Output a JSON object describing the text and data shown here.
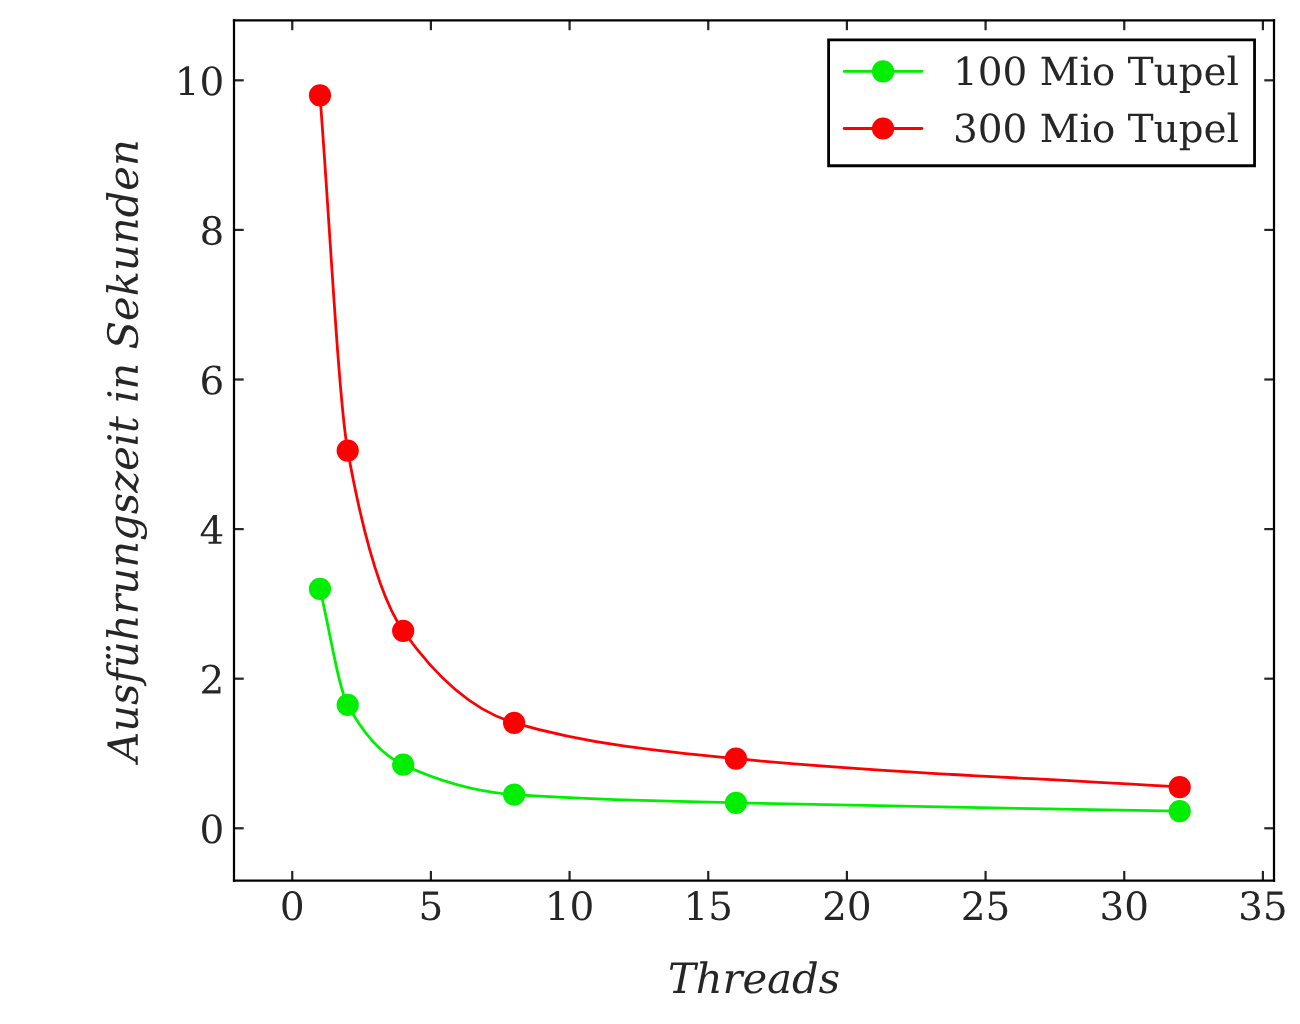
{
  "chart_data": {
    "type": "line",
    "xlabel": "Threads",
    "ylabel": "Ausführungszeit in Sekunden",
    "x": [
      1,
      2,
      4,
      8,
      16,
      32
    ],
    "series": [
      {
        "name": "100 Mio Tupel",
        "color": "#00ee00",
        "values": [
          3.2,
          1.65,
          0.85,
          0.45,
          0.34,
          0.23
        ]
      },
      {
        "name": "300 Mio Tupel",
        "color": "#ff0000",
        "values": [
          9.8,
          5.05,
          2.64,
          1.41,
          0.93,
          0.55
        ]
      }
    ],
    "xlim": [
      -2.1,
      35.4
    ],
    "ylim": [
      -0.7,
      10.8
    ],
    "xticks": [
      0,
      5,
      10,
      15,
      20,
      25,
      30,
      35
    ],
    "yticks": [
      0,
      2,
      4,
      6,
      8,
      10
    ],
    "marker": "circle",
    "line_style": "solid",
    "grid": false,
    "legend": "top right"
  }
}
